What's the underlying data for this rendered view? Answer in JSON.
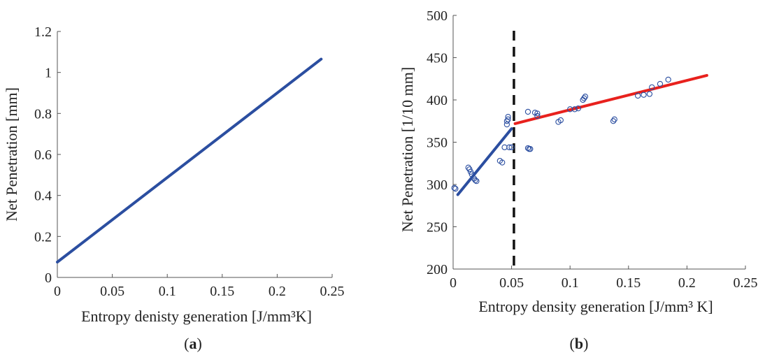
{
  "chart_data": [
    {
      "type": "line",
      "xlabel": "Entropy denisty generation [J/mm³K]",
      "ylabel": "Net Penetration [mm]",
      "panel_label": "a",
      "xlim": [
        0,
        0.25
      ],
      "ylim": [
        0,
        1.2
      ],
      "xticks": [
        "0",
        "0.05",
        "0.1",
        "0.15",
        "0.2",
        "0.25"
      ],
      "yticks": [
        "0",
        "0.2",
        "0.4",
        "0.6",
        "0.8",
        "1",
        "1.2"
      ],
      "grid": false,
      "series": [
        {
          "x": [
            0,
            0.24
          ],
          "values": [
            0.075,
            1.065
          ],
          "color": "#2b4ea0"
        }
      ]
    },
    {
      "type": "scatter",
      "xlabel": "Entropy density generation [J/mm³ K]",
      "ylabel": "Net Penetration [1/10 mm]",
      "panel_label": "b",
      "xlim": [
        0,
        0.25
      ],
      "ylim": [
        200,
        500
      ],
      "xticks": [
        "0",
        "0.05",
        "0.1",
        "0.15",
        "0.2",
        "0.25"
      ],
      "yticks": [
        "200",
        "250",
        "300",
        "350",
        "400",
        "450",
        "500"
      ],
      "grid": false,
      "points_color": "#2b4ea0",
      "points": [
        {
          "x": 0.001,
          "y": 296
        },
        {
          "x": 0.002,
          "y": 295
        },
        {
          "x": 0.013,
          "y": 320
        },
        {
          "x": 0.014,
          "y": 318
        },
        {
          "x": 0.015,
          "y": 315
        },
        {
          "x": 0.016,
          "y": 312
        },
        {
          "x": 0.018,
          "y": 307
        },
        {
          "x": 0.019,
          "y": 305
        },
        {
          "x": 0.02,
          "y": 304
        },
        {
          "x": 0.04,
          "y": 328
        },
        {
          "x": 0.042,
          "y": 326
        },
        {
          "x": 0.044,
          "y": 344
        },
        {
          "x": 0.046,
          "y": 371
        },
        {
          "x": 0.046,
          "y": 375
        },
        {
          "x": 0.047,
          "y": 377
        },
        {
          "x": 0.047,
          "y": 380
        },
        {
          "x": 0.048,
          "y": 344
        },
        {
          "x": 0.05,
          "y": 344
        },
        {
          "x": 0.064,
          "y": 386
        },
        {
          "x": 0.064,
          "y": 343
        },
        {
          "x": 0.065,
          "y": 342
        },
        {
          "x": 0.066,
          "y": 342
        },
        {
          "x": 0.07,
          "y": 385
        },
        {
          "x": 0.072,
          "y": 384
        },
        {
          "x": 0.072,
          "y": 381
        },
        {
          "x": 0.09,
          "y": 374
        },
        {
          "x": 0.092,
          "y": 376
        },
        {
          "x": 0.1,
          "y": 389
        },
        {
          "x": 0.104,
          "y": 389
        },
        {
          "x": 0.107,
          "y": 390
        },
        {
          "x": 0.111,
          "y": 400
        },
        {
          "x": 0.112,
          "y": 402
        },
        {
          "x": 0.113,
          "y": 404
        },
        {
          "x": 0.137,
          "y": 375
        },
        {
          "x": 0.138,
          "y": 377
        },
        {
          "x": 0.158,
          "y": 405
        },
        {
          "x": 0.163,
          "y": 406
        },
        {
          "x": 0.168,
          "y": 407
        },
        {
          "x": 0.17,
          "y": 415
        },
        {
          "x": 0.177,
          "y": 419
        },
        {
          "x": 0.184,
          "y": 424
        }
      ],
      "fits": [
        {
          "x": [
            0.004,
            0.05
          ],
          "values": [
            288,
            366
          ],
          "color": "#2b4ea0"
        },
        {
          "x": [
            0.053,
            0.217
          ],
          "values": [
            372,
            429
          ],
          "color": "#e8211d"
        }
      ],
      "threshold": {
        "x": 0.052,
        "color": "#111111",
        "style": "dashed"
      }
    }
  ]
}
